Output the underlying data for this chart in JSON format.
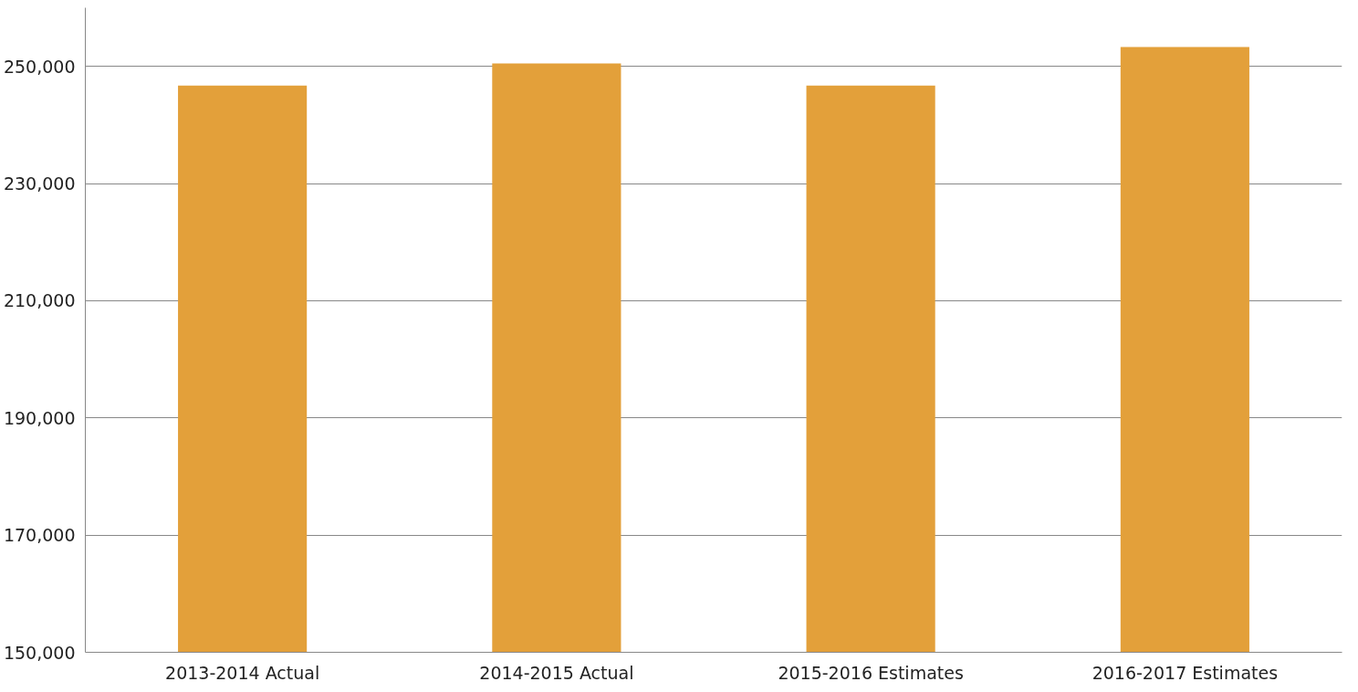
{
  "chart_data": {
    "type": "bar",
    "categories": [
      "2013-2014 Actual",
      "2014-2015 Actual",
      "2015-2016 Estimates",
      "2016-2017 Estimates"
    ],
    "values": [
      246700,
      250500,
      246700,
      253300
    ],
    "color": "#e3a03a",
    "ylim": [
      150000,
      260000
    ],
    "yticks": [
      {
        "value": 150000,
        "label": "150,000"
      },
      {
        "value": 170000,
        "label": "170,000"
      },
      {
        "value": 190000,
        "label": "190,000"
      },
      {
        "value": 210000,
        "label": "210,000"
      },
      {
        "value": 230000,
        "label": "230,000"
      },
      {
        "value": 250000,
        "label": "250,000"
      }
    ],
    "grid": "y"
  }
}
